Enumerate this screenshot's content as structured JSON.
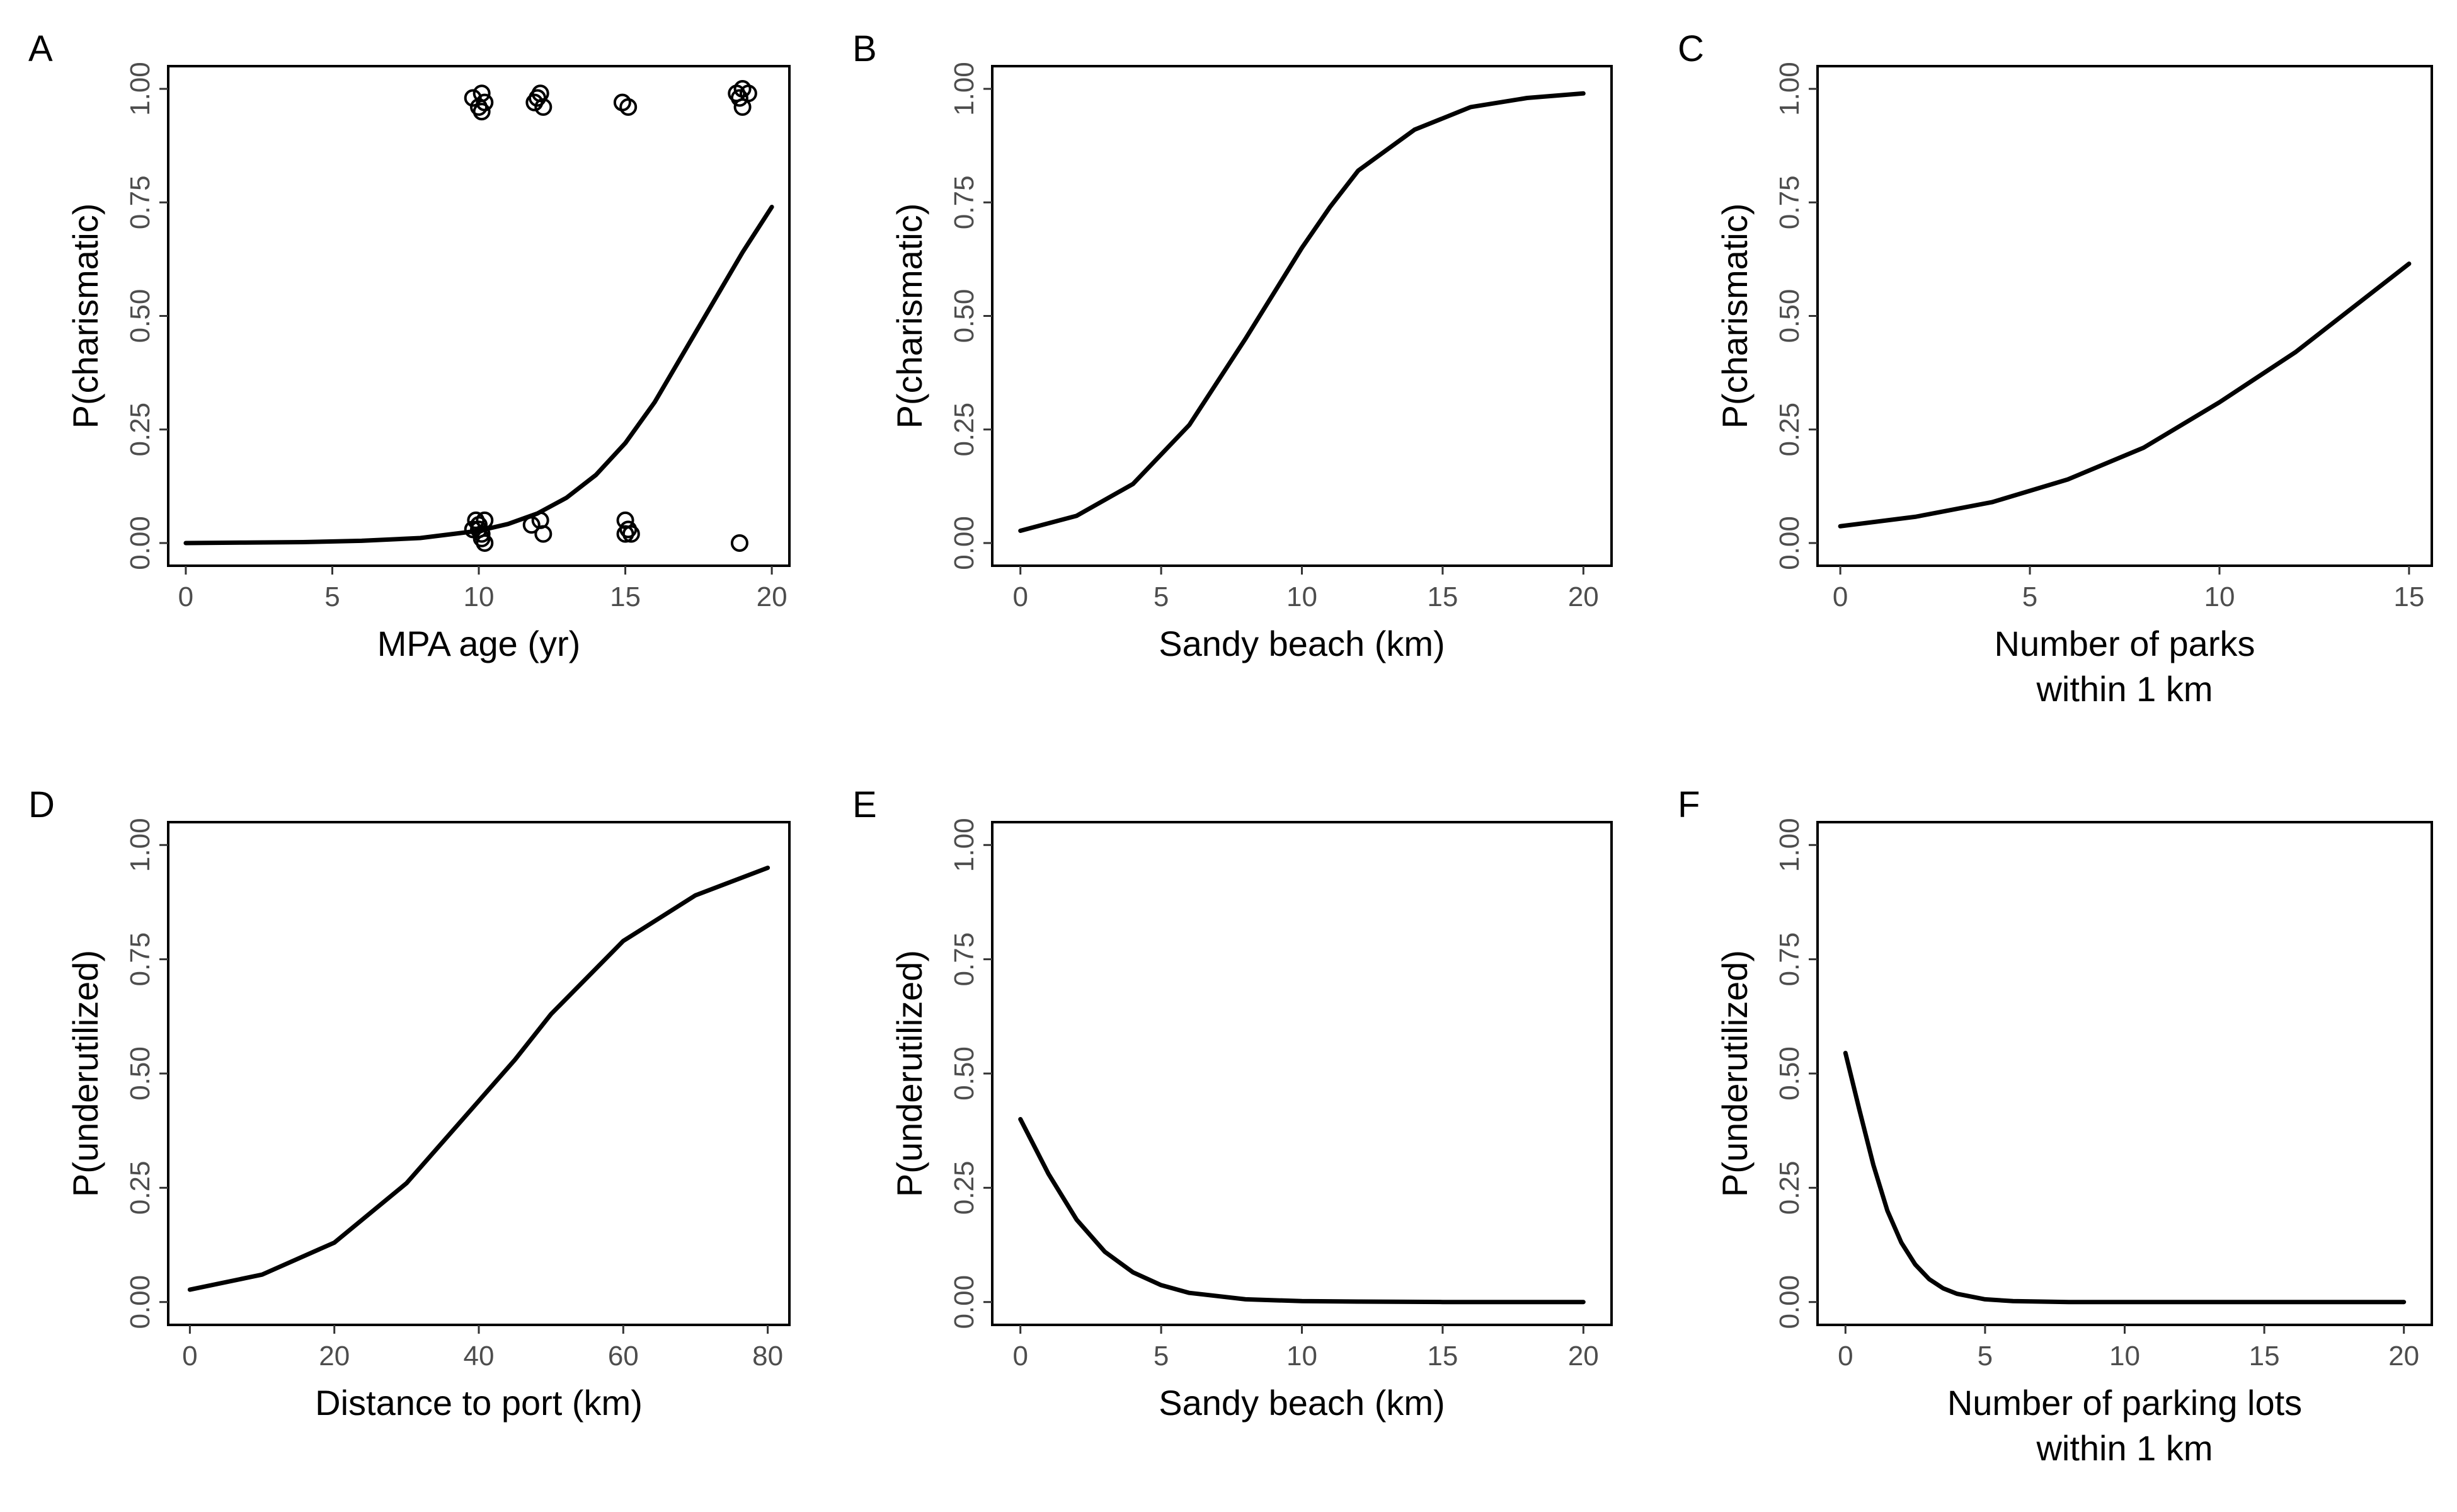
{
  "chart_data": [
    {
      "panel": "A",
      "type": "line",
      "xlabel": "MPA age (yr)",
      "ylabel": "P(charismatic)",
      "xlim": [
        -0.6,
        20.6
      ],
      "ylim": [
        -0.05,
        1.05
      ],
      "xticks": [
        0,
        5,
        10,
        15,
        20
      ],
      "yticks": [
        0.0,
        0.25,
        0.5,
        0.75,
        1.0
      ],
      "ytick_labels": [
        "0.00",
        "0.25",
        "0.50",
        "0.75",
        "1.00"
      ],
      "grid": false,
      "series": [
        {
          "kind": "curve",
          "x": [
            0,
            2,
            4,
            6,
            8,
            10,
            11,
            12,
            13,
            14,
            15,
            16,
            17,
            18,
            19,
            20
          ],
          "y": [
            0.0,
            0.001,
            0.002,
            0.005,
            0.011,
            0.027,
            0.042,
            0.065,
            0.1,
            0.15,
            0.22,
            0.31,
            0.42,
            0.53,
            0.64,
            0.74
          ]
        },
        {
          "kind": "points",
          "x": [
            9.8,
            10.1,
            10.2,
            10.0,
            10.1,
            11.9,
            12.1,
            12.2,
            12.0,
            14.9,
            15.1,
            18.8,
            19.0,
            19.2,
            19.0,
            18.9,
            9.9,
            10.0,
            10.1,
            10.2,
            10.0,
            10.2,
            9.8,
            10.1,
            11.8,
            12.1,
            12.2,
            15.0,
            15.1,
            15.0,
            15.2,
            18.9
          ],
          "y": [
            0.98,
            0.95,
            0.97,
            0.96,
            0.99,
            0.97,
            0.99,
            0.96,
            0.98,
            0.97,
            0.96,
            0.99,
            1.0,
            0.99,
            0.96,
            0.98,
            0.05,
            0.04,
            0.02,
            0.0,
            0.03,
            0.05,
            0.03,
            0.01,
            0.04,
            0.05,
            0.02,
            0.05,
            0.03,
            0.02,
            0.02,
            0.0
          ]
        }
      ]
    },
    {
      "panel": "B",
      "type": "line",
      "xlabel": "Sandy beach (km)",
      "ylabel": "P(charismatic)",
      "xlim": [
        -1.0,
        21.0
      ],
      "ylim": [
        -0.05,
        1.05
      ],
      "xticks": [
        0,
        5,
        10,
        15,
        20
      ],
      "yticks": [
        0.0,
        0.25,
        0.5,
        0.75,
        1.0
      ],
      "ytick_labels": [
        "0.00",
        "0.25",
        "0.50",
        "0.75",
        "1.00"
      ],
      "grid": false,
      "series": [
        {
          "kind": "curve",
          "x": [
            0,
            2,
            4,
            6,
            8,
            9,
            10,
            11,
            12,
            14,
            16,
            18,
            20
          ],
          "y": [
            0.027,
            0.06,
            0.13,
            0.26,
            0.45,
            0.55,
            0.65,
            0.74,
            0.82,
            0.91,
            0.96,
            0.98,
            0.99
          ]
        }
      ]
    },
    {
      "panel": "C",
      "type": "line",
      "xlabel": "Number of parks within 1 km",
      "xlabel_lines": [
        "Number of parks",
        "within 1 km"
      ],
      "ylabel": "P(charismatic)",
      "xlim": [
        -0.6,
        15.6
      ],
      "ylim": [
        -0.05,
        1.05
      ],
      "xticks": [
        0,
        5,
        10,
        15
      ],
      "yticks": [
        0.0,
        0.25,
        0.5,
        0.75,
        1.0
      ],
      "ytick_labels": [
        "0.00",
        "0.25",
        "0.50",
        "0.75",
        "1.00"
      ],
      "grid": false,
      "series": [
        {
          "kind": "curve",
          "x": [
            0,
            2,
            4,
            6,
            8,
            10,
            12,
            14,
            15
          ],
          "y": [
            0.037,
            0.058,
            0.09,
            0.14,
            0.21,
            0.31,
            0.42,
            0.55,
            0.615
          ]
        }
      ]
    },
    {
      "panel": "D",
      "type": "line",
      "xlabel": "Distance to port (km)",
      "ylabel": "P(underutilized)",
      "xlim": [
        -3.0,
        83.0
      ],
      "ylim": [
        -0.05,
        1.05
      ],
      "xticks": [
        0,
        20,
        40,
        60,
        80
      ],
      "yticks": [
        0.0,
        0.25,
        0.5,
        0.75,
        1.0
      ],
      "ytick_labels": [
        "0.00",
        "0.25",
        "0.50",
        "0.75",
        "1.00"
      ],
      "grid": false,
      "series": [
        {
          "kind": "curve",
          "x": [
            0,
            10,
            20,
            30,
            40,
            45,
            50,
            60,
            70,
            80
          ],
          "y": [
            0.027,
            0.06,
            0.13,
            0.26,
            0.44,
            0.53,
            0.63,
            0.79,
            0.89,
            0.95
          ]
        }
      ]
    },
    {
      "panel": "E",
      "type": "line",
      "xlabel": "Sandy beach (km)",
      "ylabel": "P(underutilized)",
      "xlim": [
        -1.0,
        21.0
      ],
      "ylim": [
        -0.05,
        1.05
      ],
      "xticks": [
        0,
        5,
        10,
        15,
        20
      ],
      "yticks": [
        0.0,
        0.25,
        0.5,
        0.75,
        1.0
      ],
      "ytick_labels": [
        "0.00",
        "0.25",
        "0.50",
        "0.75",
        "1.00"
      ],
      "grid": false,
      "series": [
        {
          "kind": "curve",
          "x": [
            0,
            1,
            2,
            3,
            4,
            5,
            6,
            8,
            10,
            12,
            15,
            20
          ],
          "y": [
            0.4,
            0.28,
            0.18,
            0.11,
            0.065,
            0.037,
            0.02,
            0.006,
            0.002,
            0.001,
            0.0,
            0.0
          ]
        }
      ]
    },
    {
      "panel": "F",
      "type": "line",
      "xlabel": "Number of parking lots within 1 km",
      "xlabel_lines": [
        "Number of parking lots",
        "within 1 km"
      ],
      "ylabel": "P(underutilized)",
      "xlim": [
        -1.0,
        21.0
      ],
      "ylim": [
        -0.05,
        1.05
      ],
      "xticks": [
        0,
        5,
        10,
        15,
        20
      ],
      "yticks": [
        0.0,
        0.25,
        0.5,
        0.75,
        1.0
      ],
      "ytick_labels": [
        "0.00",
        "0.25",
        "0.50",
        "0.75",
        "1.00"
      ],
      "grid": false,
      "series": [
        {
          "kind": "curve",
          "x": [
            0,
            0.5,
            1,
            1.5,
            2,
            2.5,
            3,
            3.5,
            4,
            5,
            6,
            8,
            10,
            15,
            20
          ],
          "y": [
            0.545,
            0.42,
            0.3,
            0.2,
            0.13,
            0.082,
            0.05,
            0.03,
            0.018,
            0.006,
            0.002,
            0.0,
            0.0,
            0.0,
            0.0
          ]
        }
      ]
    }
  ]
}
